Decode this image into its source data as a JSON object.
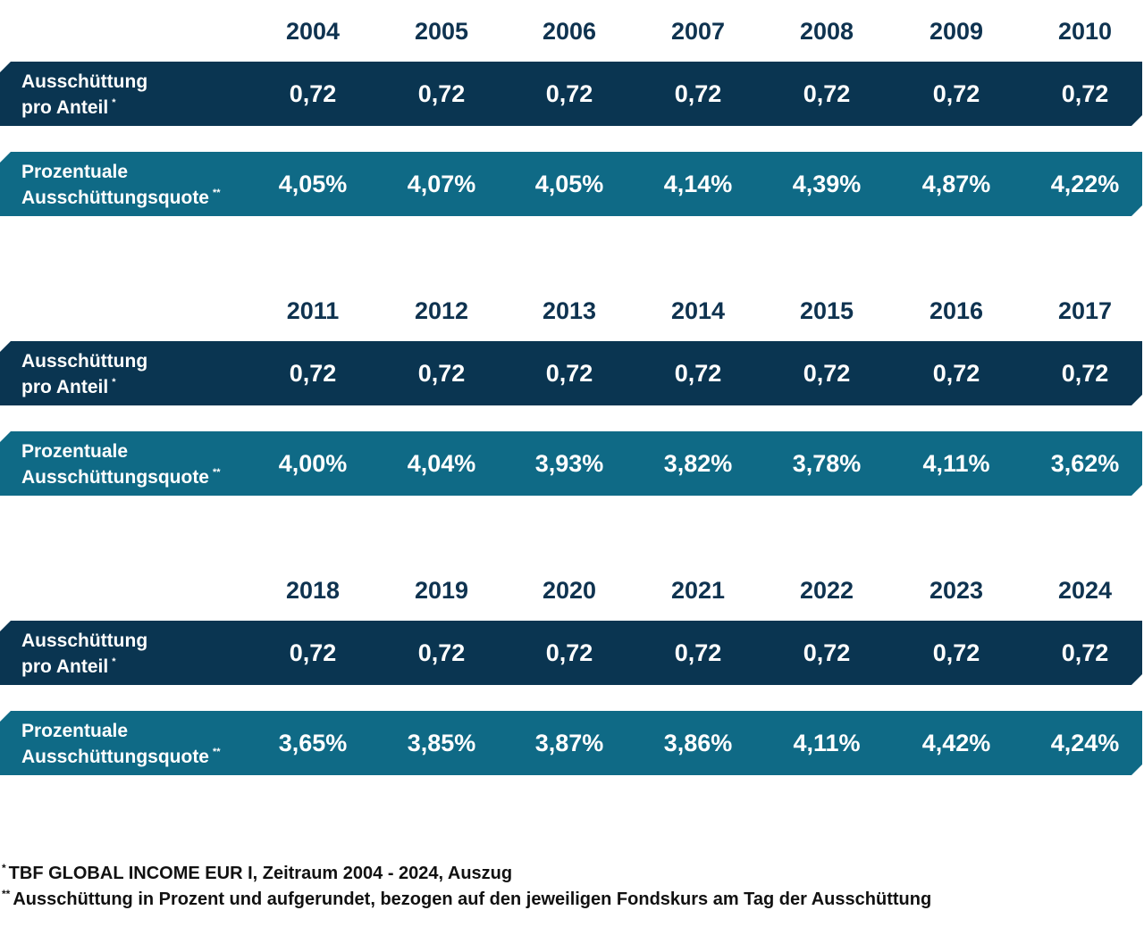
{
  "chart_data": {
    "type": "table",
    "row_labels": {
      "ausschuettung": {
        "line1": "Ausschüttung",
        "line2": "pro Anteil",
        "mark": "*"
      },
      "quote": {
        "line1": "Prozentuale",
        "line2": "Ausschüttungsquote",
        "mark": "**"
      }
    },
    "blocks": [
      {
        "years": [
          "2004",
          "2005",
          "2006",
          "2007",
          "2008",
          "2009",
          "2010"
        ],
        "ausschuettung": [
          "0,72",
          "0,72",
          "0,72",
          "0,72",
          "0,72",
          "0,72",
          "0,72"
        ],
        "quote": [
          "4,05%",
          "4,07%",
          "4,05%",
          "4,14%",
          "4,39%",
          "4,87%",
          "4,22%"
        ]
      },
      {
        "years": [
          "2011",
          "2012",
          "2013",
          "2014",
          "2015",
          "2016",
          "2017"
        ],
        "ausschuettung": [
          "0,72",
          "0,72",
          "0,72",
          "0,72",
          "0,72",
          "0,72",
          "0,72"
        ],
        "quote": [
          "4,00%",
          "4,04%",
          "3,93%",
          "3,82%",
          "3,78%",
          "4,11%",
          "3,62%"
        ]
      },
      {
        "years": [
          "2018",
          "2019",
          "2020",
          "2021",
          "2022",
          "2023",
          "2024"
        ],
        "ausschuettung": [
          "0,72",
          "0,72",
          "0,72",
          "0,72",
          "0,72",
          "0,72",
          "0,72"
        ],
        "quote": [
          "3,65%",
          "3,85%",
          "3,87%",
          "3,86%",
          "4,11%",
          "4,42%",
          "4,24%"
        ]
      }
    ],
    "colors": {
      "header_text": "#0f3350",
      "row_ausschuettung": "#0a3551",
      "row_quote": "#0f6a86"
    }
  },
  "footnotes": [
    {
      "mark": "*",
      "text": "TBF GLOBAL INCOME EUR I, Zeitraum 2004 - 2024, Auszug"
    },
    {
      "mark": "**",
      "text": "Ausschüttung in Prozent und aufgerundet, bezogen auf den jeweiligen Fondskurs am Tag der Ausschüttung"
    }
  ]
}
